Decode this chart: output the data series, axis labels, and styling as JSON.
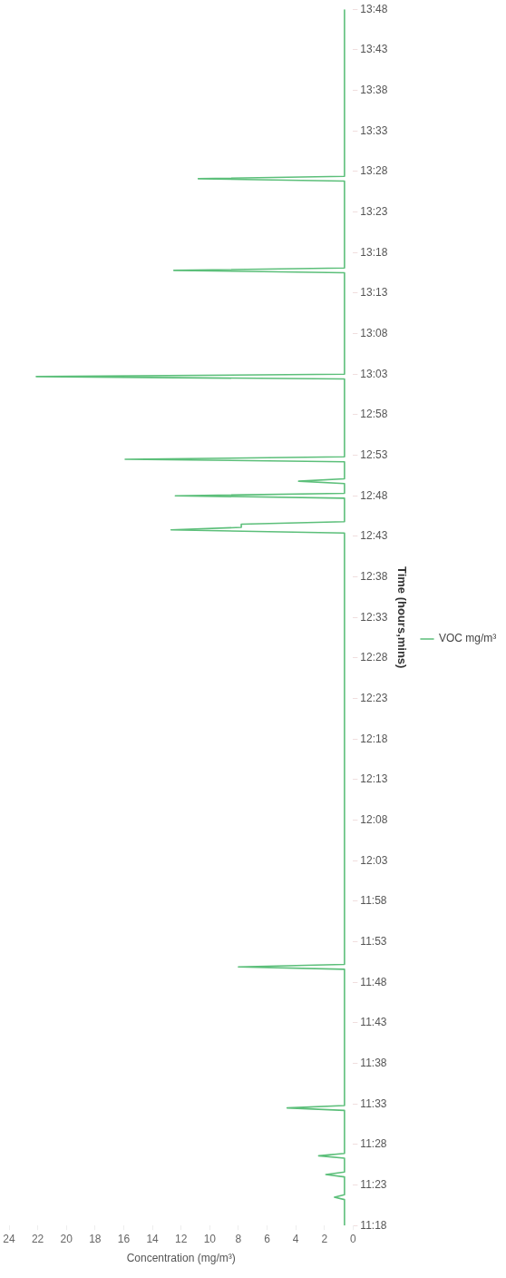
{
  "chart_data": {
    "type": "line",
    "xlabel": "Concentration (mg/m³)",
    "ylabel": "Time (hours,mins)",
    "legend": "right",
    "grid": false,
    "marker": "none",
    "line_style": "solid",
    "xlim": [
      24,
      0
    ],
    "xticks": [
      24,
      22,
      20,
      18,
      16,
      14,
      12,
      10,
      8,
      6,
      4,
      2,
      0
    ],
    "ylim": [
      11.3,
      13.8
    ],
    "yticks": [
      {
        "value": 11.3,
        "label": "11:18"
      },
      {
        "value": 11.3833,
        "label": "11:23"
      },
      {
        "value": 11.4667,
        "label": "11:28"
      },
      {
        "value": 11.55,
        "label": "11:33"
      },
      {
        "value": 11.6333,
        "label": "11:38"
      },
      {
        "value": 11.7167,
        "label": "11:43"
      },
      {
        "value": 11.8,
        "label": "11:48"
      },
      {
        "value": 11.8833,
        "label": "11:53"
      },
      {
        "value": 11.9667,
        "label": "11:58"
      },
      {
        "value": 12.05,
        "label": "12:03"
      },
      {
        "value": 12.1333,
        "label": "12:08"
      },
      {
        "value": 12.2167,
        "label": "12:13"
      },
      {
        "value": 12.3,
        "label": "12:18"
      },
      {
        "value": 12.3833,
        "label": "12:23"
      },
      {
        "value": 12.4667,
        "label": "12:28"
      },
      {
        "value": 12.55,
        "label": "12:33"
      },
      {
        "value": 12.6333,
        "label": "12:38"
      },
      {
        "value": 12.7167,
        "label": "12:43"
      },
      {
        "value": 12.8,
        "label": "12:48"
      },
      {
        "value": 12.8833,
        "label": "12:53"
      },
      {
        "value": 12.9667,
        "label": "12:58"
      },
      {
        "value": 13.05,
        "label": "13:03"
      },
      {
        "value": 13.1333,
        "label": "13:08"
      },
      {
        "value": 13.2167,
        "label": "13:13"
      },
      {
        "value": 13.3,
        "label": "13:18"
      },
      {
        "value": 13.3833,
        "label": "13:23"
      },
      {
        "value": 13.4667,
        "label": "13:28"
      },
      {
        "value": 13.55,
        "label": "13:33"
      },
      {
        "value": 13.6333,
        "label": "13:38"
      },
      {
        "value": 13.7167,
        "label": "13:43"
      },
      {
        "value": 13.8,
        "label": "13:48"
      }
    ],
    "series": [
      {
        "name": "VOC mg/m³",
        "color": "#5cbf7a",
        "x": [
          0.6,
          0.6,
          1.3,
          0.6,
          0.6,
          1.9,
          0.6,
          0.6,
          2.4,
          0.6,
          0.6,
          4.6,
          0.6,
          0.6,
          8.0,
          0.6,
          0.6,
          12.7,
          7.8,
          7.8,
          0.6,
          0.6,
          12.4,
          0.6,
          0.6,
          3.8,
          0.6,
          0.6,
          15.9,
          0.6,
          0.6,
          22.1,
          0.6,
          0.6,
          12.5,
          0.6,
          0.6,
          10.8,
          0.6,
          0.6
        ],
        "values": [
          11.3,
          11.3533,
          11.3583,
          11.3633,
          11.4,
          11.405,
          11.41,
          11.4383,
          11.4433,
          11.4483,
          11.5367,
          11.5417,
          11.5467,
          11.8267,
          11.8317,
          11.8367,
          12.7233,
          12.73,
          12.735,
          12.7417,
          12.7467,
          12.795,
          12.8,
          12.805,
          12.825,
          12.83,
          12.835,
          12.87,
          12.875,
          12.88,
          13.04,
          13.045,
          13.05,
          13.2583,
          13.2633,
          13.2683,
          13.4467,
          13.4517,
          13.4567,
          13.8
        ]
      }
    ]
  }
}
